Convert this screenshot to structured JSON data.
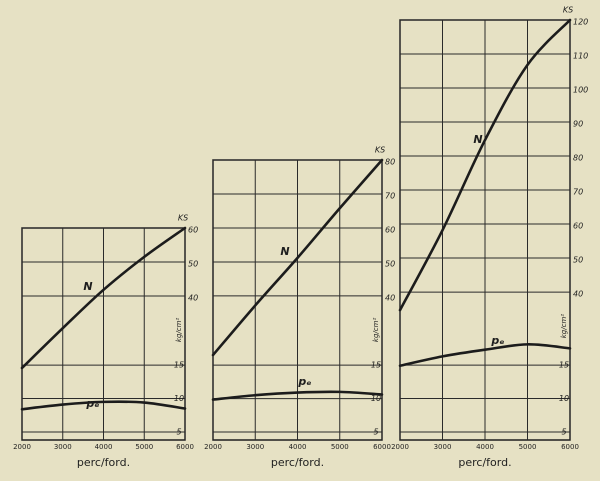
{
  "chart_data": [
    {
      "type": "line",
      "xlabel": "perc/ford.",
      "ylabel": "KS",
      "y2label": "kg/cm²",
      "x": [
        2000,
        3000,
        4000,
        5000,
        6000
      ],
      "xlim": [
        2000,
        6000
      ],
      "xticks": [
        2000,
        3000,
        4000,
        5000,
        6000
      ],
      "ylim": [
        -2.4,
        60
      ],
      "yticks": [
        40,
        50,
        60
      ],
      "y2lim": [
        3.8,
        35.5
      ],
      "y2ticks": [
        5,
        10,
        15
      ],
      "grid": true,
      "series": [
        {
          "name": "N",
          "color": "#1c1c1c",
          "values": [
            18.8,
            30.5,
            41.8,
            51.5,
            60
          ]
        },
        {
          "name": "pₑ",
          "color": "#1c1c1c",
          "axis": "y2",
          "values": [
            8.4,
            9.1,
            9.5,
            9.4,
            8.5
          ]
        }
      ]
    },
    {
      "type": "line",
      "xlabel": "perc/ford.",
      "ylabel": "KS",
      "y2label": "kg/cm²",
      "x": [
        2000,
        3000,
        4000,
        5000,
        6000
      ],
      "xlim": [
        2000,
        6000
      ],
      "xticks": [
        2000,
        3000,
        4000,
        5000,
        6000
      ],
      "ylim": [
        -2.4,
        80
      ],
      "yticks": [
        40,
        50,
        60,
        70,
        80
      ],
      "y2lim": [
        3.8,
        45.7
      ],
      "y2ticks": [
        5,
        10,
        15
      ],
      "grid": true,
      "series": [
        {
          "name": "N",
          "color": "#1c1c1c",
          "values": [
            22.6,
            37.2,
            51.2,
            65.8,
            80
          ]
        },
        {
          "name": "pₑ",
          "color": "#1c1c1c",
          "axis": "y2",
          "values": [
            9.85,
            10.5,
            10.9,
            11,
            10.6
          ]
        }
      ]
    },
    {
      "type": "line",
      "xlabel": "perc/ford.",
      "ylabel": "KS",
      "y2label": "kg/cm²",
      "x": [
        2000,
        3000,
        4000,
        5000,
        6000
      ],
      "xlim": [
        2000,
        6000
      ],
      "xticks": [
        2000,
        3000,
        4000,
        5000,
        6000
      ],
      "ylim": [
        -3.5,
        120
      ],
      "yticks": [
        40,
        50,
        60,
        70,
        80,
        90,
        100,
        110,
        120
      ],
      "y2lim": [
        3.8,
        66.6
      ],
      "y2ticks": [
        5,
        10,
        15
      ],
      "grid": true,
      "series": [
        {
          "name": "N",
          "color": "#1c1c1c",
          "values": [
            34.7,
            58.2,
            84.7,
            106.8,
            120
          ]
        },
        {
          "name": "pₑ",
          "color": "#1c1c1c",
          "axis": "y2",
          "values": [
            14.9,
            16.3,
            17.3,
            18.1,
            17.5
          ]
        }
      ]
    }
  ]
}
